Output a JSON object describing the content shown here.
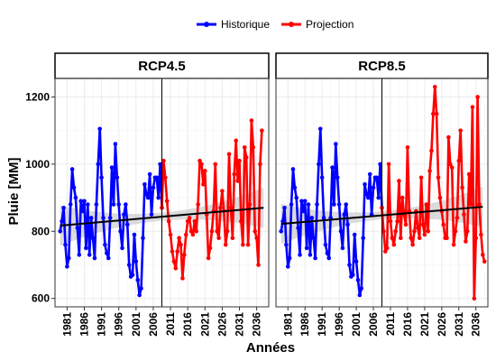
{
  "chart_data": {
    "type": "line",
    "xlabel": "Années",
    "ylabel": "Pluie [MM]",
    "xlim": [
      1977.5,
      2039.5
    ],
    "ylim": [
      575,
      1255
    ],
    "x_ticks": [
      "1981",
      "1986",
      "1991",
      "1996",
      "2001",
      "2006",
      "2011",
      "2016",
      "2021",
      "2026",
      "2031",
      "2036"
    ],
    "y_ticks": [
      "600",
      "800",
      "1000",
      "1200"
    ],
    "grid": true,
    "legend_position": "top",
    "legend": [
      {
        "label": "Historique",
        "color": "#0000ff"
      },
      {
        "label": "Projection",
        "color": "#ff0000"
      }
    ],
    "vline_x": 2008.5,
    "panels": [
      {
        "title": "RCP4.5",
        "trend": {
          "x": [
            1979,
            2038
          ],
          "y": [
            817,
            870
          ]
        },
        "series": [
          {
            "name": "Historique",
            "color": "#0000ff",
            "x": [
              1979,
              1979.5,
              1980,
              1980.5,
              1981,
              1981.5,
              1982,
              1982.5,
              1983,
              1983.5,
              1984,
              1984.5,
              1985,
              1985.5,
              1986,
              1986.5,
              1987,
              1987.5,
              1988,
              1988.5,
              1989,
              1989.5,
              1990,
              1990.5,
              1991,
              1991.5,
              1992,
              1992.5,
              1993,
              1993.5,
              1994,
              1994.5,
              1995,
              1995.5,
              1996,
              1996.5,
              1997,
              1997.5,
              1998,
              1998.5,
              1999,
              1999.5,
              2000,
              2000.5,
              2001,
              2001.5,
              2002,
              2002.5,
              2003,
              2003.5,
              2004,
              2004.5,
              2005,
              2005.5,
              2006,
              2006.5,
              2007,
              2007.5,
              2008,
              2008.5
            ],
            "y": [
              800,
              830,
              870,
              760,
              695,
              720,
              880,
              985,
              930,
              900,
              810,
              730,
              890,
              860,
              890,
              750,
              880,
              730,
              840,
              780,
              720,
              880,
              1000,
              1105,
              960,
              840,
              760,
              735,
              720,
              840,
              990,
              880,
              1060,
              960,
              880,
              800,
              750,
              850,
              880,
              820,
              700,
              665,
              670,
              790,
              710,
              655,
              610,
              630,
              780,
              940,
              910,
              900,
              970,
              850,
              930,
              960,
              960,
              900,
              1000,
              870
            ]
          },
          {
            "name": "Projection",
            "color": "#ff0000",
            "x": [
              2008.5,
              2009,
              2009.5,
              2010,
              2010.5,
              2011,
              2011.5,
              2012,
              2012.5,
              2013,
              2013.5,
              2014,
              2014.5,
              2015,
              2015.5,
              2016,
              2016.5,
              2017,
              2017.5,
              2018,
              2018.5,
              2019,
              2019.5,
              2020,
              2020.5,
              2021,
              2021.5,
              2022,
              2022.5,
              2023,
              2023.5,
              2024,
              2024.5,
              2025,
              2025.5,
              2026,
              2026.5,
              2027,
              2027.5,
              2028,
              2028.5,
              2029,
              2029.5,
              2030,
              2030.5,
              2031,
              2031.5,
              2032,
              2032.5,
              2033,
              2033.5,
              2034,
              2034.5,
              2035,
              2035.5,
              2036,
              2036.5,
              2037,
              2037.5
            ],
            "y": [
              870,
              1010,
              960,
              890,
              830,
              790,
              740,
              710,
              690,
              740,
              780,
              760,
              660,
              730,
              790,
              830,
              840,
              800,
              790,
              830,
              800,
              880,
              1010,
              1000,
              940,
              980,
              850,
              720,
              750,
              800,
              860,
              1000,
              800,
              780,
              870,
              920,
              860,
              760,
              800,
              1030,
              870,
              780,
              970,
              1070,
              950,
              1010,
              830,
              760,
              1050,
              1020,
              760,
              880,
              1130,
              1050,
              800,
              780,
              700,
              1000,
              1100
            ]
          }
        ]
      },
      {
        "title": "RCP8.5",
        "trend": {
          "x": [
            1979,
            2038
          ],
          "y": [
            822,
            873
          ]
        },
        "series": [
          {
            "name": "Historique",
            "color": "#0000ff",
            "x": [
              1979,
              1979.5,
              1980,
              1980.5,
              1981,
              1981.5,
              1982,
              1982.5,
              1983,
              1983.5,
              1984,
              1984.5,
              1985,
              1985.5,
              1986,
              1986.5,
              1987,
              1987.5,
              1988,
              1988.5,
              1989,
              1989.5,
              1990,
              1990.5,
              1991,
              1991.5,
              1992,
              1992.5,
              1993,
              1993.5,
              1994,
              1994.5,
              1995,
              1995.5,
              1996,
              1996.5,
              1997,
              1997.5,
              1998,
              1998.5,
              1999,
              1999.5,
              2000,
              2000.5,
              2001,
              2001.5,
              2002,
              2002.5,
              2003,
              2003.5,
              2004,
              2004.5,
              2005,
              2005.5,
              2006,
              2006.5,
              2007,
              2007.5,
              2008,
              2008.5
            ],
            "y": [
              800,
              830,
              870,
              760,
              695,
              720,
              880,
              985,
              930,
              900,
              810,
              730,
              890,
              860,
              890,
              750,
              880,
              730,
              840,
              780,
              720,
              880,
              1000,
              1105,
              960,
              840,
              760,
              735,
              720,
              840,
              990,
              880,
              1060,
              960,
              880,
              800,
              750,
              850,
              880,
              820,
              700,
              665,
              670,
              790,
              710,
              655,
              610,
              630,
              780,
              940,
              910,
              900,
              970,
              850,
              930,
              960,
              960,
              900,
              1000,
              870
            ]
          },
          {
            "name": "Projection",
            "color": "#ff0000",
            "x": [
              2008.5,
              2009,
              2009.5,
              2010,
              2010.5,
              2011,
              2011.5,
              2012,
              2012.5,
              2013,
              2013.5,
              2014,
              2014.5,
              2015,
              2015.5,
              2016,
              2016.5,
              2017,
              2017.5,
              2018,
              2018.5,
              2019,
              2019.5,
              2020,
              2020.5,
              2021,
              2021.5,
              2022,
              2022.5,
              2023,
              2023.5,
              2024,
              2024.5,
              2025,
              2025.5,
              2026,
              2026.5,
              2027,
              2027.5,
              2028,
              2028.5,
              2029,
              2029.5,
              2030,
              2030.5,
              2031,
              2031.5,
              2032,
              2032.5,
              2033,
              2033.5,
              2034,
              2034.5,
              2035,
              2035.5,
              2036,
              2036.5,
              2037,
              2037.5,
              2038,
              2038.5
            ],
            "y": [
              870,
              800,
              740,
              750,
              1000,
              830,
              780,
              760,
              800,
              830,
              950,
              780,
              900,
              850,
              820,
              1050,
              860,
              780,
              760,
              800,
              860,
              810,
              780,
              960,
              820,
              790,
              880,
              800,
              980,
              1040,
              1150,
              1230,
              1150,
              960,
              900,
              860,
              820,
              780,
              780,
              1080,
              1000,
              990,
              760,
              800,
              840,
              1010,
              1100,
              930,
              850,
              770,
              800,
              970,
              880,
              1170,
              600,
              780,
              1200,
              880,
              790,
              730,
              710
            ]
          }
        ]
      }
    ]
  }
}
